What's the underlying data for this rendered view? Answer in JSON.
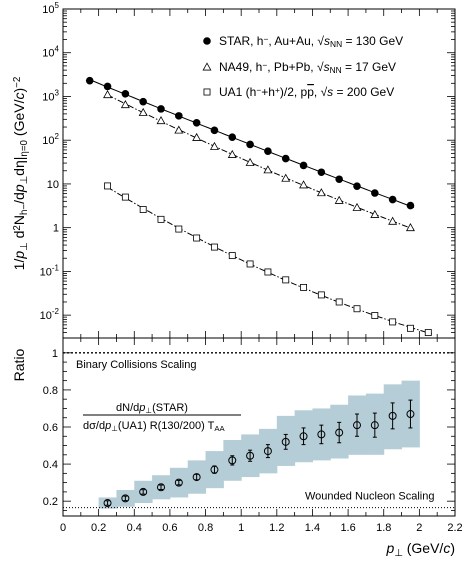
{
  "chart_data": [
    {
      "type": "scatter",
      "ylabel_parts": [
        "1/",
        "p",
        "⊥",
        " d",
        "2",
        "N",
        "h−",
        "/d",
        "p",
        "⊥",
        "dη|",
        "η=0",
        " (GeV/",
        "c",
        ")",
        "−2"
      ],
      "yscale": "log",
      "ylim": [
        0.003,
        100000
      ],
      "y_ticks": [
        {
          "v": 100000,
          "base": "10",
          "exp": "5"
        },
        {
          "v": 10000,
          "base": "10",
          "exp": "4"
        },
        {
          "v": 1000,
          "base": "10",
          "exp": "3"
        },
        {
          "v": 100,
          "base": "10",
          "exp": "2"
        },
        {
          "v": 10,
          "base": "10",
          "exp": ""
        },
        {
          "v": 1,
          "base": "1",
          "exp": ""
        },
        {
          "v": 0.1,
          "base": "10",
          "exp": "-1"
        },
        {
          "v": 0.01,
          "base": "10",
          "exp": "-2"
        }
      ],
      "legend_position": "top-right",
      "series": [
        {
          "name": "STAR, h−, Au+Au, √sNN = 130 GeV",
          "legend_parts": [
            "STAR, h",
            "−",
            ", Au+Au, ",
            "√",
            "s",
            "NN",
            " = 130 GeV"
          ],
          "marker": "filled-circle",
          "fit": "solid",
          "x": [
            0.15,
            0.25,
            0.35,
            0.45,
            0.55,
            0.65,
            0.75,
            0.85,
            0.95,
            1.05,
            1.15,
            1.25,
            1.35,
            1.45,
            1.55,
            1.65,
            1.75,
            1.85,
            1.95
          ],
          "y": [
            2300,
            1700,
            1150,
            760,
            520,
            360,
            250,
            168,
            117,
            80,
            56,
            38,
            26.5,
            18.5,
            12.8,
            8.9,
            6.2,
            4.4,
            3.2
          ]
        },
        {
          "name": "NA49, h−, Pb+Pb, √sNN = 17 GeV",
          "legend_parts": [
            "NA49, h",
            "−",
            ", Pb+Pb, ",
            "√",
            "s",
            "NN",
            " = 17 GeV"
          ],
          "marker": "open-triangle",
          "fit": "dash-dot",
          "x": [
            0.25,
            0.35,
            0.45,
            0.55,
            0.65,
            0.75,
            0.85,
            0.95,
            1.05,
            1.15,
            1.25,
            1.35,
            1.45,
            1.55,
            1.65,
            1.75,
            1.85,
            1.95
          ],
          "y": [
            1100,
            650,
            430,
            280,
            170,
            115,
            72,
            47,
            31,
            21,
            13.5,
            9.5,
            6.3,
            4.2,
            2.9,
            2.0,
            1.4,
            1.0
          ]
        },
        {
          "name": "UA1 (h−+h+)/2, pp̄, √s = 200 GeV",
          "legend_parts": [
            "UA1 (h",
            "−",
            "+h",
            "+",
            ")/2, p",
            "p",
            ", ",
            "√",
            "s",
            "",
            " = 200 GeV"
          ],
          "marker": "open-square",
          "fit": "dash-dot",
          "x": [
            0.25,
            0.35,
            0.45,
            0.55,
            0.65,
            0.75,
            0.85,
            0.95,
            1.05,
            1.15,
            1.25,
            1.35,
            1.45,
            1.55,
            1.65,
            1.75,
            1.85,
            1.95,
            2.05
          ],
          "y": [
            9.0,
            5.0,
            2.6,
            1.55,
            0.93,
            0.58,
            0.36,
            0.23,
            0.148,
            0.097,
            0.064,
            0.043,
            0.029,
            0.02,
            0.014,
            0.0098,
            0.007,
            0.005,
            0.004
          ]
        }
      ]
    },
    {
      "type": "scatter",
      "ylabel": "Ratio",
      "xlabel_parts": [
        "p",
        "⊥",
        " (GeV/",
        "c",
        ")"
      ],
      "xlim": [
        0,
        2.2
      ],
      "ylim": [
        0.12,
        1.08
      ],
      "x_ticks": [
        "0",
        "0.2",
        "0.4",
        "0.6",
        "0.8",
        "1",
        "1.2",
        "1.4",
        "1.6",
        "1.8",
        "2",
        "2.2"
      ],
      "y_ticks": [
        "0.2",
        "0.4",
        "0.6",
        "0.8",
        "1"
      ],
      "annotations": {
        "binary_collisions": "Binary Collisions Scaling",
        "binary_level": 1.0,
        "wounded_nucleon": "Wounded Nucleon Scaling",
        "wounded_level": 0.165,
        "numerator_parts": [
          "dN/d",
          "p",
          "⊥",
          "(STAR)"
        ],
        "denominator_parts": [
          "dσ/d",
          "p",
          "⊥",
          "(UA1)  R(130/200)  T",
          "AA"
        ]
      },
      "band_color": "#b4cdd6",
      "x": [
        0.25,
        0.35,
        0.45,
        0.55,
        0.65,
        0.75,
        0.85,
        0.95,
        1.05,
        1.15,
        1.25,
        1.35,
        1.45,
        1.55,
        1.65,
        1.75,
        1.85,
        1.95
      ],
      "y": [
        0.19,
        0.215,
        0.25,
        0.275,
        0.3,
        0.33,
        0.37,
        0.42,
        0.445,
        0.47,
        0.52,
        0.55,
        0.56,
        0.57,
        0.61,
        0.61,
        0.66,
        0.67
      ],
      "stat_err": [
        0.012,
        0.012,
        0.012,
        0.012,
        0.012,
        0.015,
        0.02,
        0.025,
        0.03,
        0.035,
        0.04,
        0.045,
        0.05,
        0.055,
        0.06,
        0.065,
        0.07,
        0.075
      ],
      "band_low": [
        0.16,
        0.17,
        0.19,
        0.21,
        0.22,
        0.24,
        0.27,
        0.31,
        0.33,
        0.35,
        0.39,
        0.41,
        0.42,
        0.43,
        0.45,
        0.45,
        0.48,
        0.49
      ],
      "band_high": [
        0.22,
        0.26,
        0.31,
        0.34,
        0.38,
        0.42,
        0.47,
        0.53,
        0.56,
        0.59,
        0.66,
        0.69,
        0.7,
        0.72,
        0.77,
        0.78,
        0.83,
        0.85
      ]
    }
  ]
}
